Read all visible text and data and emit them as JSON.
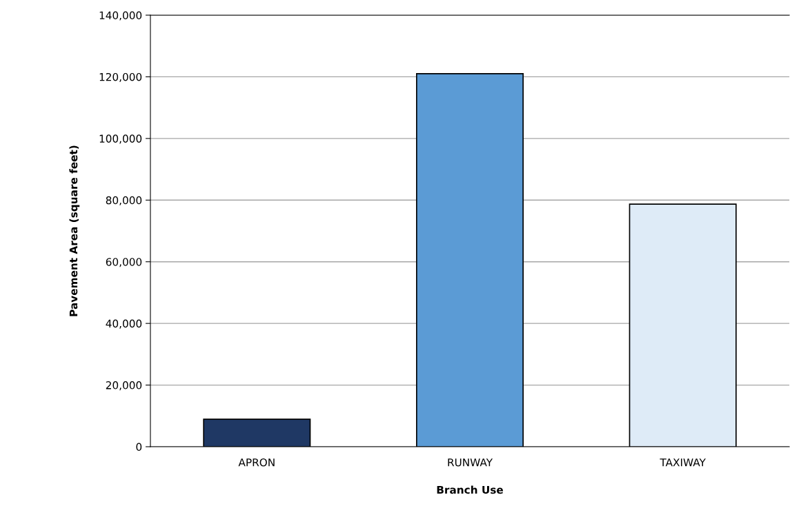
{
  "chart_data": {
    "type": "bar",
    "xlabel": "Branch Use",
    "ylabel": "Pavement Area (square feet)",
    "categories": [
      "APRON",
      "RUNWAY",
      "TAXIWAY"
    ],
    "values": [
      8900,
      121000,
      78700
    ],
    "colors": [
      "#1f3864",
      "#5b9bd5",
      "#deebf7"
    ],
    "ylim": [
      0,
      140000
    ],
    "yticks": [
      0,
      {
        "value": 20000,
        "label": "20,000"
      },
      {
        "value": 40000,
        "label": "40,000"
      },
      {
        "value": 60000,
        "label": "60,000"
      },
      {
        "value": 80000,
        "label": "80,000"
      },
      {
        "value": 100000,
        "label": "100,000"
      },
      {
        "value": 120000,
        "label": "120,000"
      },
      {
        "value": 140000,
        "label": "140,000"
      }
    ],
    "grid": "y",
    "legend": false
  }
}
